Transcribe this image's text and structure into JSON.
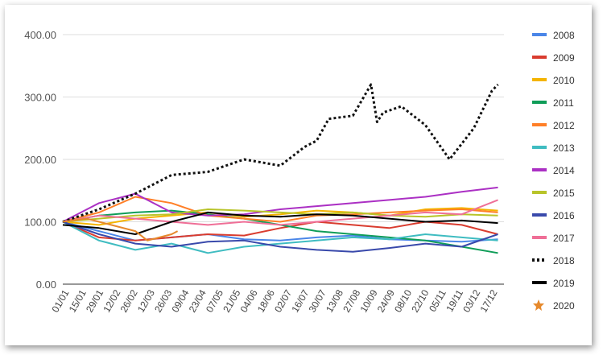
{
  "chart_data": {
    "type": "line",
    "title": "",
    "xlabel": "",
    "ylabel": "",
    "ylim": [
      0,
      400
    ],
    "y_ticks": [
      "0.00",
      "100.00",
      "200.00",
      "300.00",
      "400.00"
    ],
    "y_tick_values": [
      0,
      100,
      200,
      300,
      400
    ],
    "x_tick_labels": [
      "01/01",
      "15/01",
      "29/01",
      "12/02",
      "26/02",
      "12/03",
      "26/03",
      "09/04",
      "23/04",
      "07/05",
      "21/05",
      "04/06",
      "18/06",
      "02/07",
      "16/07",
      "30/07",
      "13/08",
      "27/08",
      "10/09",
      "24/09",
      "08/10",
      "22/10",
      "05/11",
      "19/11",
      "03/12",
      "17/12"
    ],
    "x_domain": [
      0,
      365
    ],
    "grid": true,
    "legend_position": "right",
    "series": [
      {
        "name": "2008",
        "color": "#4a86e8",
        "style": "solid",
        "x": [
          0,
          30,
          60,
          90,
          120,
          150,
          180,
          210,
          240,
          270,
          300,
          330,
          360
        ],
        "values": [
          100,
          85,
          70,
          75,
          80,
          72,
          70,
          75,
          78,
          72,
          70,
          68,
          72
        ]
      },
      {
        "name": "2009",
        "color": "#d93c2f",
        "style": "solid",
        "x": [
          0,
          30,
          60,
          90,
          120,
          150,
          180,
          210,
          240,
          270,
          300,
          330,
          360
        ],
        "values": [
          100,
          75,
          70,
          75,
          80,
          78,
          90,
          100,
          95,
          90,
          100,
          95,
          80
        ]
      },
      {
        "name": "2010",
        "color": "#f4b400",
        "style": "solid",
        "x": [
          0,
          30,
          60,
          90,
          120,
          150,
          180,
          210,
          240,
          270,
          300,
          330,
          360
        ],
        "values": [
          100,
          95,
          105,
          110,
          115,
          108,
          112,
          118,
          115,
          110,
          120,
          122,
          118
        ]
      },
      {
        "name": "2011",
        "color": "#0f9d58",
        "style": "solid",
        "x": [
          0,
          30,
          60,
          90,
          120,
          150,
          180,
          210,
          240,
          270,
          300,
          330,
          360
        ],
        "values": [
          100,
          110,
          115,
          118,
          112,
          105,
          95,
          85,
          80,
          75,
          70,
          60,
          50
        ]
      },
      {
        "name": "2012",
        "color": "#ff7f27",
        "style": "solid",
        "x": [
          0,
          30,
          60,
          90,
          120,
          150,
          180,
          210,
          240,
          270,
          300,
          330,
          360
        ],
        "values": [
          100,
          115,
          140,
          130,
          110,
          105,
          100,
          110,
          112,
          115,
          118,
          120,
          115
        ]
      },
      {
        "name": "2013",
        "color": "#3fbcc1",
        "style": "solid",
        "x": [
          0,
          30,
          60,
          90,
          120,
          150,
          180,
          210,
          240,
          270,
          300,
          330,
          360
        ],
        "values": [
          100,
          70,
          55,
          65,
          50,
          60,
          65,
          70,
          75,
          72,
          80,
          75,
          70
        ]
      },
      {
        "name": "2014",
        "color": "#ab30c4",
        "style": "solid",
        "x": [
          0,
          30,
          60,
          90,
          120,
          150,
          180,
          210,
          240,
          270,
          300,
          330,
          360
        ],
        "values": [
          100,
          130,
          145,
          115,
          110,
          112,
          120,
          125,
          130,
          135,
          140,
          148,
          155
        ]
      },
      {
        "name": "2015",
        "color": "#b8c42a",
        "style": "solid",
        "x": [
          0,
          30,
          60,
          90,
          120,
          150,
          180,
          210,
          240,
          270,
          300,
          330,
          360
        ],
        "values": [
          100,
          105,
          110,
          112,
          120,
          118,
          115,
          112,
          115,
          110,
          108,
          112,
          110
        ]
      },
      {
        "name": "2016",
        "color": "#3949ab",
        "style": "solid",
        "x": [
          0,
          30,
          60,
          90,
          120,
          150,
          180,
          210,
          240,
          270,
          300,
          330,
          360
        ],
        "values": [
          100,
          80,
          65,
          60,
          68,
          70,
          60,
          55,
          52,
          58,
          65,
          60,
          80
        ]
      },
      {
        "name": "2017",
        "color": "#ef6f97",
        "style": "solid",
        "x": [
          0,
          30,
          60,
          90,
          120,
          150,
          180,
          210,
          240,
          270,
          300,
          330,
          360
        ],
        "values": [
          100,
          110,
          105,
          100,
          95,
          100,
          95,
          100,
          105,
          110,
          115,
          112,
          135
        ]
      },
      {
        "name": "2018",
        "color": "#111111",
        "style": "dotted",
        "x": [
          0,
          30,
          60,
          90,
          120,
          150,
          180,
          200,
          210,
          220,
          240,
          255,
          260,
          265,
          280,
          300,
          320,
          340,
          355,
          360
        ],
        "values": [
          100,
          120,
          145,
          175,
          180,
          200,
          190,
          220,
          230,
          265,
          270,
          320,
          260,
          275,
          285,
          255,
          200,
          250,
          310,
          320
        ]
      },
      {
        "name": "2019",
        "color": "#000000",
        "style": "solid",
        "x": [
          0,
          30,
          60,
          90,
          120,
          150,
          180,
          210,
          240,
          270,
          300,
          330,
          360
        ],
        "values": [
          95,
          90,
          80,
          100,
          115,
          110,
          108,
          112,
          110,
          105,
          100,
          102,
          98
        ]
      },
      {
        "name": "2020",
        "color": "#e6892c",
        "style": "solid",
        "x": [
          0,
          20,
          40,
          60,
          70,
          80,
          90,
          95
        ],
        "values": [
          100,
          105,
          95,
          85,
          70,
          75,
          80,
          85
        ]
      }
    ]
  }
}
